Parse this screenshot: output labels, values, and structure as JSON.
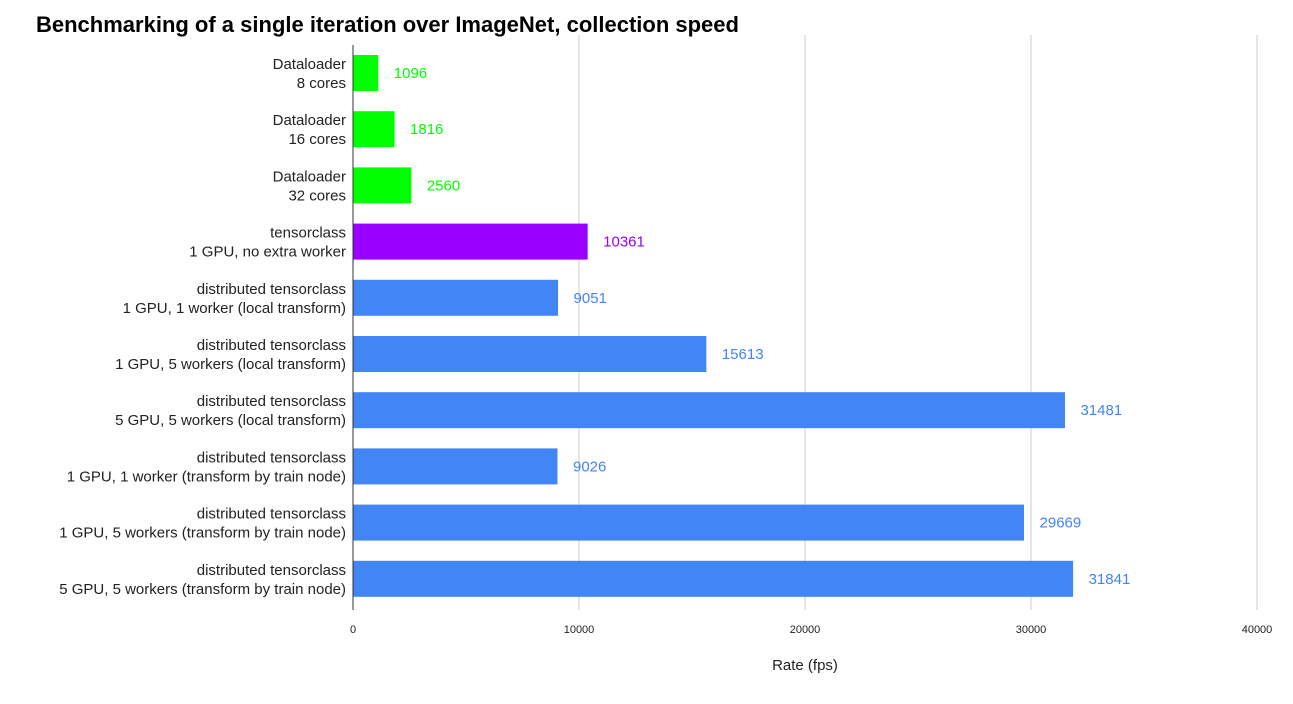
{
  "chart_data": {
    "type": "bar",
    "orientation": "horizontal",
    "title": "Benchmarking of a single iteration over ImageNet, collection speed",
    "xlabel": "Rate (fps)",
    "ylabel": "",
    "xlim": [
      0,
      40000
    ],
    "x_ticks": [
      "0",
      "10000",
      "20000",
      "30000",
      "40000"
    ],
    "grid": "vertical",
    "categories": [
      [
        "Dataloader",
        "8 cores"
      ],
      [
        "Dataloader",
        "16 cores"
      ],
      [
        "Dataloader",
        "32 cores"
      ],
      [
        "tensorclass",
        "1 GPU, no extra worker"
      ],
      [
        "distributed tensorclass",
        "1 GPU, 1 worker (local transform)"
      ],
      [
        "distributed tensorclass",
        "1 GPU, 5 workers (local transform)"
      ],
      [
        "distributed tensorclass",
        "5 GPU, 5 workers (local transform)"
      ],
      [
        "distributed tensorclass",
        "1 GPU, 1 worker (transform by train node)"
      ],
      [
        "distributed tensorclass",
        "1 GPU, 5 workers (transform by train node)"
      ],
      [
        "distributed tensorclass",
        "5 GPU, 5 workers (transform by train node)"
      ]
    ],
    "values": [
      1096,
      1816,
      2560,
      10361,
      9051,
      15613,
      31481,
      9026,
      29669,
      31841
    ],
    "data_labels": [
      "1096",
      "1816",
      "2560",
      "10361",
      "9051",
      "15613",
      "31481",
      "9026",
      "29669",
      "31841"
    ],
    "colors": [
      "#00ff00",
      "#00ff00",
      "#00ff00",
      "#9900ff",
      "#4285f4",
      "#4285f4",
      "#4285f4",
      "#4285f4",
      "#4285f4",
      "#4285f4"
    ],
    "gridline_color": "#cccccc",
    "axis_color": "#333333"
  }
}
